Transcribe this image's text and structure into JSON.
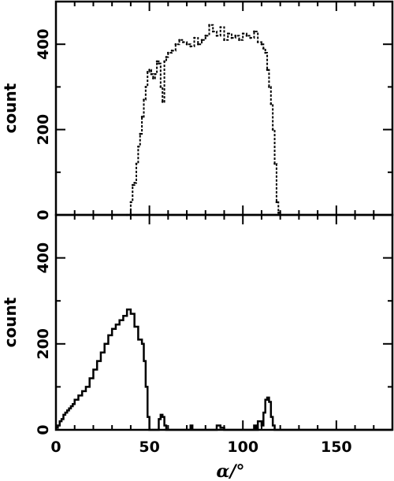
{
  "chart_data": [
    {
      "type": "line",
      "style": "dashed-step",
      "xlabel": "",
      "ylabel": "count",
      "xlim": [
        0,
        180
      ],
      "ylim": [
        0,
        500
      ],
      "xticks": [
        0,
        50,
        100,
        150
      ],
      "xtick_labels": [],
      "yticks": [
        0,
        200,
        400
      ],
      "ytick_labels": [
        "0",
        "200",
        "400"
      ],
      "series": [
        {
          "x": [
            38,
            40,
            41,
            42,
            43,
            44,
            45,
            46,
            47,
            48,
            49,
            50,
            51,
            52,
            53,
            54,
            55,
            56,
            57,
            58,
            59,
            60,
            62,
            64,
            66,
            68,
            70,
            72,
            74,
            76,
            78,
            80,
            82,
            84,
            86,
            88,
            90,
            92,
            94,
            96,
            98,
            100,
            102,
            104,
            106,
            108,
            110,
            111,
            112,
            113,
            114,
            115,
            116,
            117,
            118,
            119,
            120
          ],
          "y": [
            0,
            30,
            70,
            75,
            120,
            160,
            190,
            230,
            270,
            300,
            335,
            340,
            330,
            320,
            330,
            360,
            355,
            300,
            265,
            360,
            370,
            380,
            385,
            400,
            410,
            405,
            400,
            395,
            415,
            400,
            410,
            420,
            445,
            430,
            420,
            440,
            410,
            425,
            415,
            420,
            410,
            425,
            420,
            415,
            430,
            405,
            400,
            390,
            380,
            340,
            300,
            260,
            200,
            120,
            30,
            5,
            0
          ]
        }
      ]
    },
    {
      "type": "line",
      "style": "solid-step",
      "xlabel": "α/°",
      "ylabel": "count",
      "xlim": [
        0,
        180
      ],
      "ylim": [
        0,
        500
      ],
      "xticks": [
        0,
        50,
        100,
        150
      ],
      "xtick_labels": [
        "0",
        "50",
        "100",
        "150"
      ],
      "yticks": [
        0,
        200,
        400
      ],
      "ytick_labels": [
        "0",
        "200",
        "400"
      ],
      "series": [
        {
          "x": [
            0,
            1,
            2,
            3,
            4,
            5,
            6,
            7,
            8,
            9,
            10,
            12,
            14,
            16,
            18,
            20,
            22,
            24,
            26,
            28,
            30,
            32,
            34,
            36,
            38,
            40,
            42,
            44,
            46,
            47,
            48,
            49,
            50,
            52,
            54,
            55,
            56,
            57,
            58,
            59,
            60,
            70,
            72,
            73,
            80,
            86,
            88,
            90,
            100,
            106,
            107,
            108,
            110,
            111,
            112,
            113,
            114,
            115,
            116,
            117,
            118,
            119,
            120,
            180
          ],
          "y": [
            5,
            10,
            20,
            25,
            35,
            40,
            45,
            50,
            55,
            60,
            70,
            80,
            90,
            100,
            120,
            140,
            160,
            180,
            200,
            220,
            235,
            245,
            255,
            265,
            280,
            270,
            240,
            210,
            200,
            160,
            100,
            30,
            0,
            0,
            0,
            25,
            35,
            30,
            10,
            0,
            0,
            0,
            10,
            0,
            0,
            10,
            5,
            0,
            0,
            10,
            0,
            20,
            10,
            40,
            70,
            75,
            65,
            30,
            10,
            0,
            0,
            0,
            0,
            0
          ]
        }
      ]
    }
  ]
}
